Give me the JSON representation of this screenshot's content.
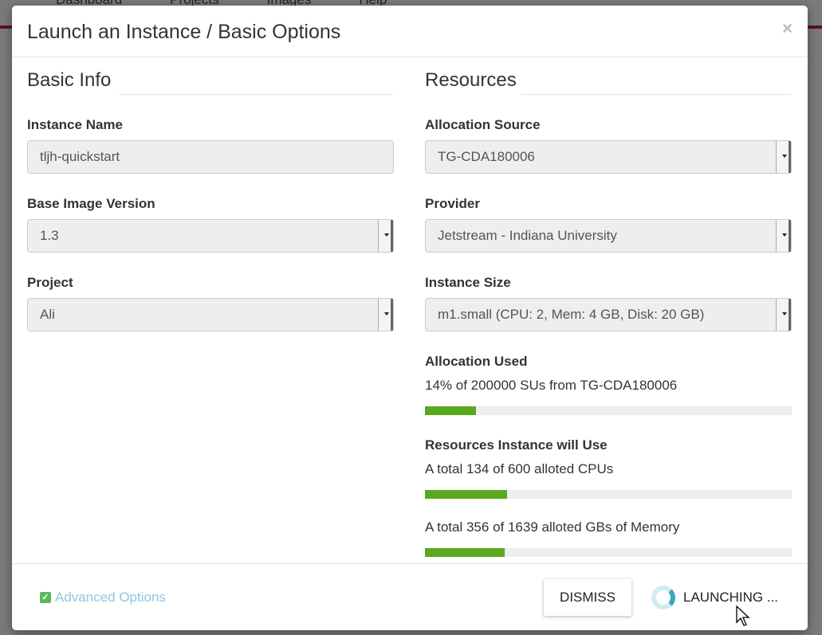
{
  "background": {
    "nav": [
      "Dashboard",
      "Projects",
      "Images",
      "Help"
    ]
  },
  "modal": {
    "title": "Launch an Instance / Basic Options",
    "close_label": "×",
    "basic_info": {
      "heading": "Basic Info",
      "instance_name": {
        "label": "Instance Name",
        "value": "tljh-quickstart"
      },
      "base_image_version": {
        "label": "Base Image Version",
        "value": "1.3"
      },
      "project": {
        "label": "Project",
        "value": "Ali"
      }
    },
    "resources": {
      "heading": "Resources",
      "allocation_source": {
        "label": "Allocation Source",
        "value": "TG-CDA180006"
      },
      "provider": {
        "label": "Provider",
        "value": "Jetstream - Indiana University"
      },
      "instance_size": {
        "label": "Instance Size",
        "value": "m1.small (CPU: 2, Mem: 4 GB, Disk: 20 GB)"
      },
      "allocation_used": {
        "label": "Allocation Used",
        "text": "14% of 200000 SUs from TG-CDA180006",
        "percent": 14
      },
      "will_use": {
        "label": "Resources Instance will Use",
        "cpu_text": "A total 134 of 600 alloted CPUs",
        "cpu_percent": 22.3,
        "mem_text": "A total 356 of 1639 alloted GBs of Memory",
        "mem_percent": 21.7
      }
    },
    "footer": {
      "advanced_options": "Advanced Options",
      "dismiss": "DISMISS",
      "launching": "LAUNCHING ..."
    }
  },
  "colors": {
    "progress": "#5aa820",
    "link": "#8cc9dc",
    "spinner": "#36a9c1"
  }
}
